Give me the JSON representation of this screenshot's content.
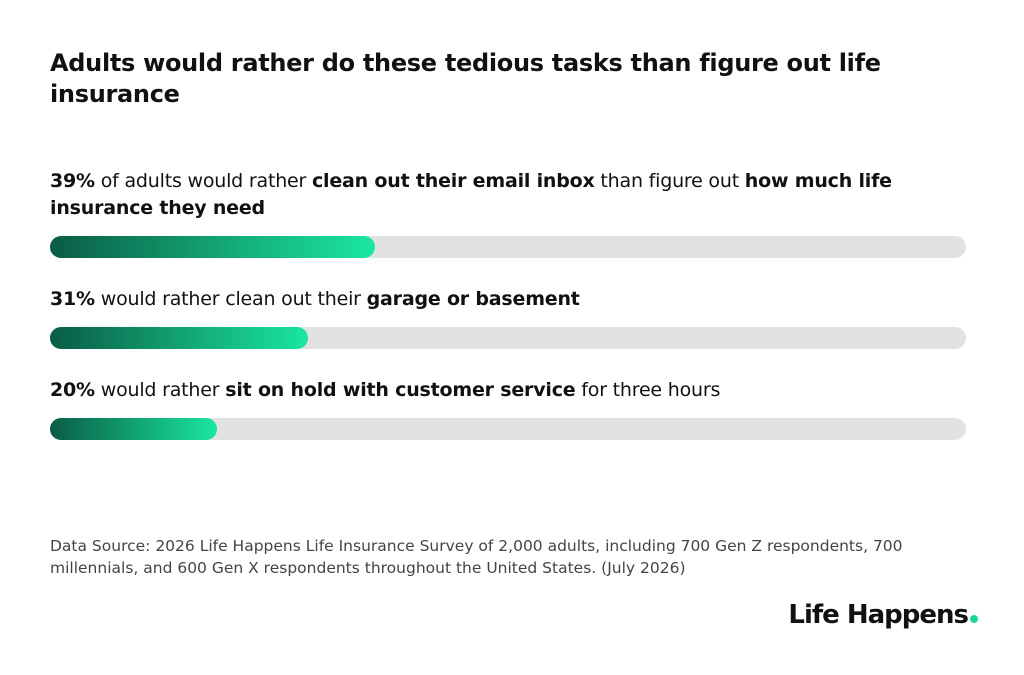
{
  "chart_data": {
    "type": "bar",
    "title": "Adults would rather do these tedious tasks than figure out life insurance",
    "values": [
      39,
      31,
      20
    ],
    "value_labels": [
      "39%",
      "31%",
      "20%"
    ],
    "categories": [
      [
        "of adults would rather",
        "clean out their email inbox",
        "than figure out",
        "how much life insurance they need"
      ],
      [
        "would rather clean out their",
        "garage or basement"
      ],
      [
        "would rather",
        "sit on hold with customer service",
        "for three hours"
      ]
    ],
    "category_bold": [
      [
        false,
        true,
        false,
        true
      ],
      [
        false,
        true
      ],
      [
        false,
        true,
        false
      ]
    ],
    "xlim": [
      0,
      110
    ],
    "colors": [
      "#0a5c44",
      "#1ae6a2"
    ],
    "track_color": "#e2e2e2",
    "source": "Data Source: 2026 Life Happens Life Insurance Survey of 2,000 adults, including 700 Gen Z respondents, 700 millennials, and 600 Gen X respondents throughout the United States. (July 2026)",
    "brand": "Life Happens"
  }
}
